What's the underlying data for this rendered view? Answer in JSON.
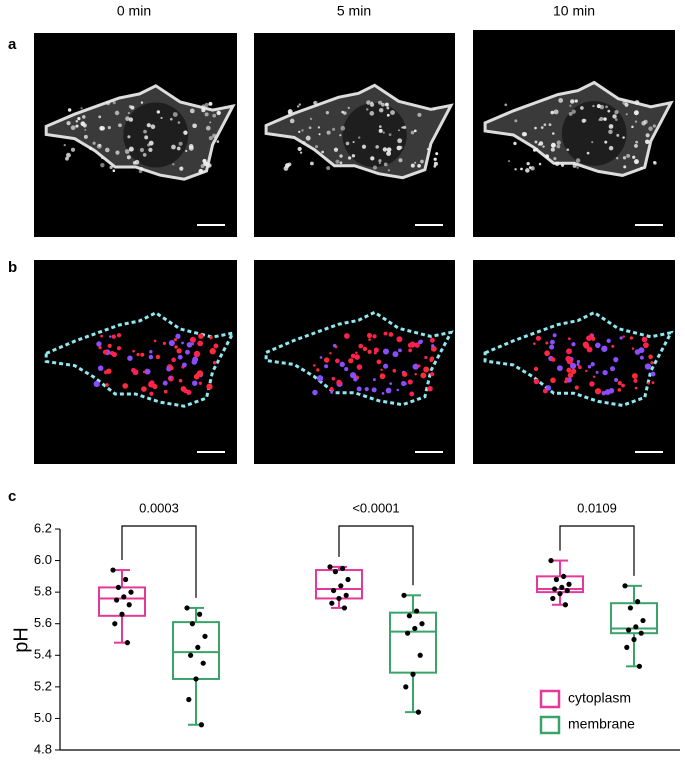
{
  "figure": {
    "panels": [
      "a",
      "b",
      "c"
    ],
    "time_labels": [
      "0 min",
      "5 min",
      "10 min"
    ]
  },
  "chart_data": {
    "type": "box",
    "y_label": "pH",
    "ylim": [
      4.8,
      6.2
    ],
    "yticks": [
      {
        "value": 4.8,
        "label": "4.8"
      },
      {
        "value": 5.0,
        "label": "5.0"
      },
      5.2,
      5.4,
      5.6,
      5.8,
      {
        "value": 6.0,
        "label": "6.0"
      },
      6.2
    ],
    "annotations": [
      "0.0003",
      "<0.0001",
      "0.0109"
    ],
    "legend": "lower right",
    "series": [
      {
        "name": "cytoplasm",
        "color": "#e4399a",
        "groups": [
          {
            "min": 5.48,
            "q1": 5.65,
            "median": 5.76,
            "q3": 5.83,
            "max": 5.94,
            "points": [
              5.94,
              5.88,
              5.83,
              5.8,
              5.77,
              5.75,
              5.72,
              5.66,
              5.6,
              5.48
            ]
          },
          {
            "min": 5.7,
            "q1": 5.76,
            "median": 5.82,
            "q3": 5.94,
            "max": 5.96,
            "points": [
              5.96,
              5.95,
              5.93,
              5.88,
              5.84,
              5.81,
              5.78,
              5.76,
              5.73,
              5.7
            ]
          },
          {
            "min": 5.72,
            "q1": 5.8,
            "median": 5.82,
            "q3": 5.9,
            "max": 6.0,
            "points": [
              6.0,
              5.9,
              5.88,
              5.85,
              5.83,
              5.82,
              5.81,
              5.79,
              5.76,
              5.72
            ]
          }
        ]
      },
      {
        "name": "membrane",
        "color": "#3aa36a",
        "groups": [
          {
            "min": 4.96,
            "q1": 5.25,
            "median": 5.42,
            "q3": 5.61,
            "max": 5.7,
            "points": [
              5.7,
              5.66,
              5.6,
              5.52,
              5.45,
              5.4,
              5.35,
              5.25,
              5.12,
              4.96
            ]
          },
          {
            "min": 5.04,
            "q1": 5.29,
            "median": 5.55,
            "q3": 5.67,
            "max": 5.78,
            "points": [
              5.78,
              5.68,
              5.65,
              5.6,
              5.57,
              5.54,
              5.4,
              5.28,
              5.2,
              5.04
            ]
          },
          {
            "min": 5.33,
            "q1": 5.54,
            "median": 5.57,
            "q3": 5.73,
            "max": 5.84,
            "points": [
              5.84,
              5.74,
              5.7,
              5.62,
              5.58,
              5.56,
              5.54,
              5.5,
              5.45,
              5.33
            ]
          }
        ]
      }
    ]
  }
}
